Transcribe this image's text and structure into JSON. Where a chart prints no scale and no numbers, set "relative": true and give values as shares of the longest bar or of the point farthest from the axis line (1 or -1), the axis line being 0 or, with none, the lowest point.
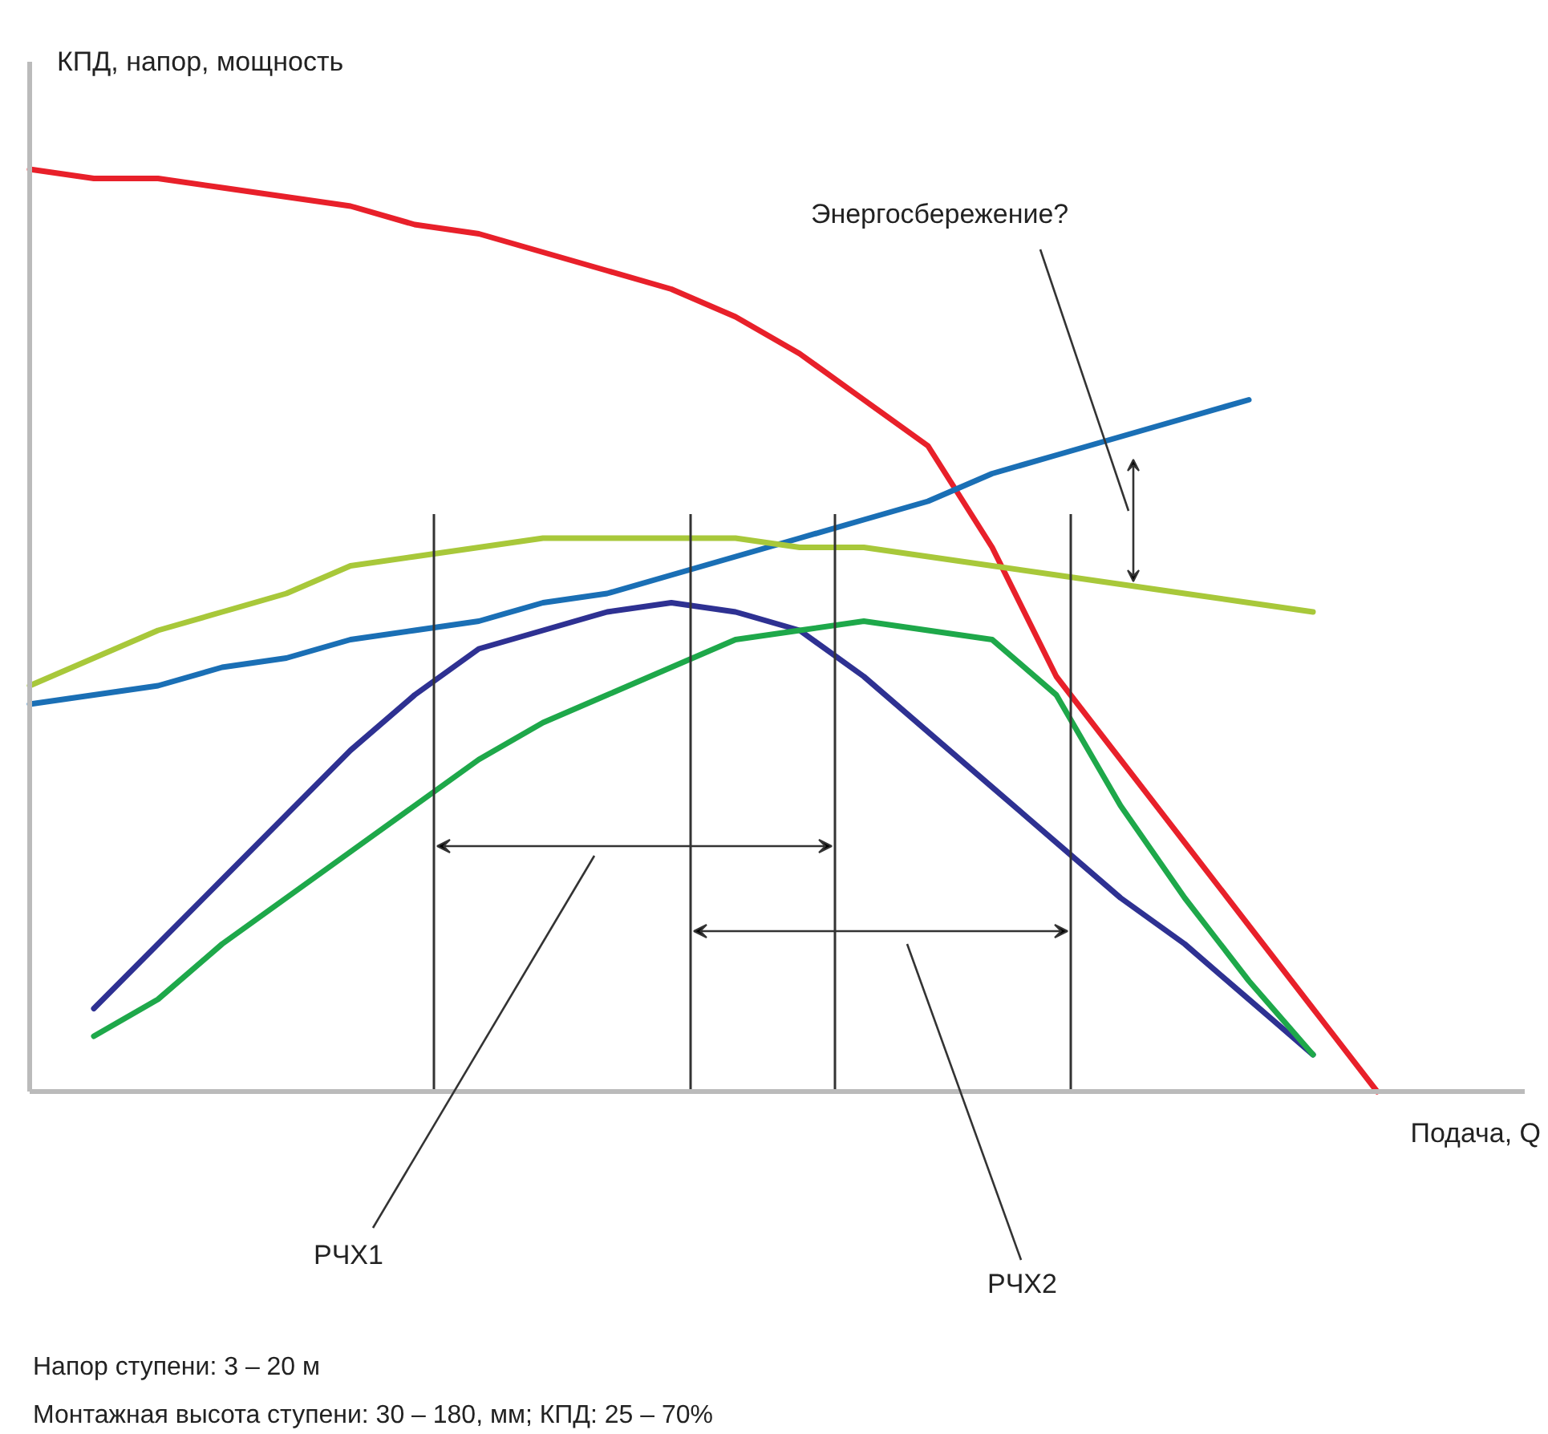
{
  "chart_data": {
    "type": "line",
    "relative": true,
    "ylabel": "КПД, напор, мощность",
    "xlabel": "Подача, Q",
    "categories": [
      null,
      null,
      null,
      null,
      null,
      null,
      null,
      null,
      null,
      null,
      null,
      null,
      null,
      null,
      null,
      null,
      null,
      null,
      null,
      null,
      null,
      null
    ],
    "series": [
      {
        "color": "#e8202a",
        "values": [
          1.0,
          0.99,
          0.99,
          0.98,
          0.97,
          0.96,
          0.94,
          0.93,
          0.91,
          0.89,
          0.87,
          0.84,
          0.8,
          0.75,
          0.7,
          0.59,
          0.45,
          0.36,
          0.27,
          0.18,
          0.09,
          0
        ]
      },
      {
        "color": "#1a6fb5",
        "values": [
          0.42,
          0.43,
          0.44,
          0.46,
          0.47,
          0.49,
          0.5,
          0.51,
          0.53,
          0.54,
          0.56,
          0.58,
          0.6,
          0.62,
          0.64,
          0.67,
          0.69,
          0.71,
          0.73,
          0.75,
          null,
          null
        ]
      },
      {
        "color": "#a8c83a",
        "values": [
          0.44,
          0.47,
          0.5,
          0.52,
          0.54,
          0.57,
          0.58,
          0.59,
          0.6,
          0.6,
          0.6,
          0.6,
          0.59,
          0.59,
          0.58,
          0.57,
          0.56,
          0.55,
          0.54,
          0.53,
          0.52,
          null
        ]
      },
      {
        "color": "#2e3192",
        "values": [
          null,
          0.09,
          0.16,
          0.23,
          0.3,
          0.37,
          0.43,
          0.48,
          0.5,
          0.52,
          0.53,
          0.52,
          0.5,
          0.45,
          0.39,
          0.33,
          0.27,
          0.21,
          0.16,
          0.1,
          0.04,
          null
        ]
      },
      {
        "color": "#1ea84a",
        "values": [
          null,
          0.06,
          0.1,
          0.16,
          0.21,
          0.26,
          0.31,
          0.36,
          0.4,
          0.43,
          0.46,
          0.49,
          0.5,
          0.51,
          0.5,
          0.49,
          0.43,
          0.31,
          0.21,
          0.12,
          0.04,
          null
        ]
      }
    ],
    "annotations": [
      "Энергосбережение?",
      "РЧХ1",
      "РЧХ2",
      "Напор ступени: 3 – 20 м",
      "Монтажная высота ступени: 30 – 180, мм; КПД: 25 – 70%"
    ]
  }
}
